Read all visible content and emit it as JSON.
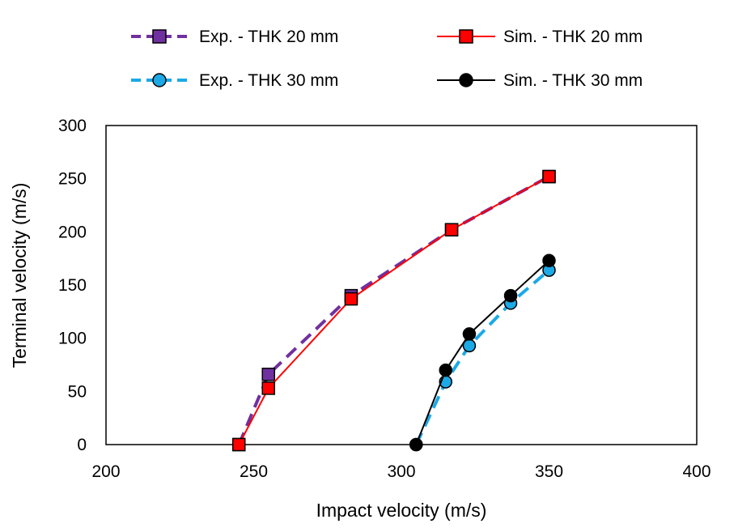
{
  "chart_data": {
    "type": "line",
    "xlabel": "Impact velocity (m/s)",
    "ylabel": "Terminal velocity (m/s)",
    "xlim": [
      200,
      400
    ],
    "ylim": [
      0,
      300
    ],
    "xticks": [
      "200",
      "250",
      "300",
      "350",
      "400"
    ],
    "yticks": [
      "0",
      "50",
      "100",
      "150",
      "200",
      "250",
      "300"
    ],
    "grid": false,
    "legend_position": "top",
    "series": [
      {
        "name": "Exp. - THK 20 mm",
        "color": "#7030A0",
        "line": "dashed",
        "marker": "square",
        "x": [
          245,
          255,
          283,
          317,
          350
        ],
        "y": [
          0,
          66,
          140,
          202,
          252
        ]
      },
      {
        "name": "Sim. - THK 20 mm",
        "color": "#FF0000",
        "line": "solid",
        "marker": "square",
        "x": [
          245,
          255,
          283,
          317,
          350
        ],
        "y": [
          0,
          53,
          137,
          202,
          252
        ]
      },
      {
        "name": "Exp. - THK 30 mm",
        "color": "#1CA9E6",
        "line": "dashed",
        "marker": "circle",
        "x": [
          305,
          315,
          323,
          337,
          350
        ],
        "y": [
          0,
          59,
          93,
          133,
          164
        ]
      },
      {
        "name": "Sim. - THK 30 mm",
        "color": "#000000",
        "line": "solid",
        "marker": "circle",
        "x": [
          305,
          315,
          323,
          337,
          350
        ],
        "y": [
          0,
          70,
          104,
          140,
          173
        ]
      }
    ]
  }
}
